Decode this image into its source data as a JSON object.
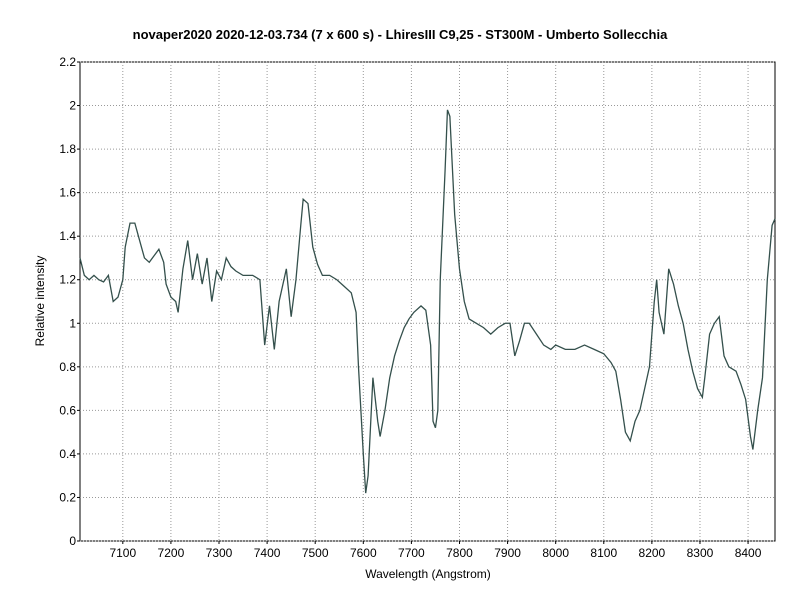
{
  "chart_data": {
    "type": "line",
    "title": "novaper2020  2020-12-03.734  (7 x 600 s)  - LhiresIII  C9,25 - ST300M - Umberto Sollecchia",
    "x_label": "Wavelength (Angstrom)",
    "y_label": "Relative intensity",
    "color": "#34504c",
    "grid": true,
    "xlim": [
      7011,
      8456
    ],
    "ylim": [
      0,
      2.2
    ],
    "xticks": [
      7100,
      7200,
      7300,
      7400,
      7500,
      7600,
      7700,
      7800,
      7900,
      8000,
      8100,
      8200,
      8300,
      8400
    ],
    "yticks": [
      0,
      0.2,
      0.4,
      0.6,
      0.8,
      1,
      1.2,
      1.4,
      1.6,
      1.8,
      2,
      2.2
    ],
    "x": [
      7011,
      7020,
      7030,
      7040,
      7050,
      7060,
      7070,
      7080,
      7090,
      7100,
      7105,
      7115,
      7125,
      7135,
      7145,
      7155,
      7165,
      7175,
      7185,
      7190,
      7200,
      7210,
      7215,
      7225,
      7235,
      7245,
      7255,
      7265,
      7275,
      7285,
      7295,
      7305,
      7315,
      7325,
      7335,
      7350,
      7370,
      7385,
      7395,
      7405,
      7415,
      7425,
      7440,
      7450,
      7460,
      7470,
      7475,
      7485,
      7495,
      7505,
      7515,
      7530,
      7545,
      7560,
      7575,
      7585,
      7590,
      7600,
      7605,
      7610,
      7620,
      7630,
      7635,
      7645,
      7655,
      7665,
      7675,
      7685,
      7695,
      7705,
      7720,
      7730,
      7740,
      7745,
      7750,
      7755,
      7760,
      7770,
      7775,
      7780,
      7790,
      7800,
      7810,
      7820,
      7835,
      7850,
      7865,
      7880,
      7895,
      7905,
      7915,
      7925,
      7935,
      7945,
      7960,
      7975,
      7990,
      8000,
      8020,
      8040,
      8060,
      8080,
      8100,
      8115,
      8125,
      8135,
      8145,
      8155,
      8165,
      8175,
      8185,
      8195,
      8205,
      8210,
      8215,
      8225,
      8235,
      8245,
      8255,
      8265,
      8275,
      8285,
      8295,
      8305,
      8310,
      8320,
      8330,
      8340,
      8350,
      8360,
      8375,
      8385,
      8395,
      8405,
      8410,
      8420,
      8430,
      8440,
      8450,
      8456
    ],
    "values": [
      1.3,
      1.22,
      1.2,
      1.22,
      1.2,
      1.19,
      1.22,
      1.1,
      1.12,
      1.2,
      1.35,
      1.46,
      1.46,
      1.38,
      1.3,
      1.28,
      1.31,
      1.34,
      1.28,
      1.18,
      1.12,
      1.1,
      1.05,
      1.25,
      1.38,
      1.2,
      1.32,
      1.18,
      1.3,
      1.1,
      1.24,
      1.2,
      1.3,
      1.26,
      1.24,
      1.22,
      1.22,
      1.2,
      0.9,
      1.08,
      0.88,
      1.1,
      1.25,
      1.03,
      1.2,
      1.45,
      1.57,
      1.55,
      1.35,
      1.27,
      1.22,
      1.22,
      1.2,
      1.17,
      1.14,
      1.05,
      0.8,
      0.4,
      0.22,
      0.3,
      0.75,
      0.55,
      0.48,
      0.6,
      0.75,
      0.85,
      0.92,
      0.98,
      1.02,
      1.05,
      1.08,
      1.06,
      0.9,
      0.55,
      0.52,
      0.6,
      1.2,
      1.7,
      1.98,
      1.95,
      1.5,
      1.25,
      1.1,
      1.02,
      1.0,
      0.98,
      0.95,
      0.98,
      1.0,
      1.0,
      0.85,
      0.92,
      1.0,
      1.0,
      0.95,
      0.9,
      0.88,
      0.9,
      0.88,
      0.88,
      0.9,
      0.88,
      0.86,
      0.82,
      0.78,
      0.65,
      0.5,
      0.46,
      0.55,
      0.6,
      0.7,
      0.8,
      1.1,
      1.2,
      1.05,
      0.95,
      1.25,
      1.18,
      1.08,
      1.0,
      0.88,
      0.78,
      0.7,
      0.66,
      0.75,
      0.95,
      1.0,
      1.03,
      0.85,
      0.8,
      0.78,
      0.72,
      0.65,
      0.48,
      0.42,
      0.6,
      0.75,
      1.2,
      1.45,
      1.48
    ]
  }
}
